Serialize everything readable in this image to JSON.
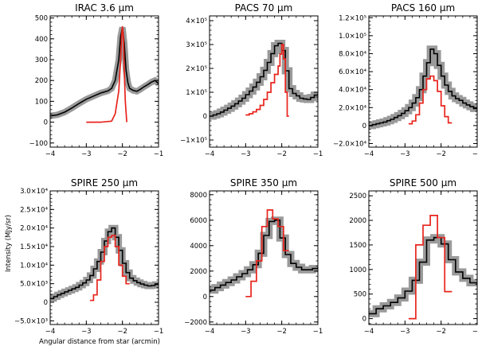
{
  "figure": {
    "ylabel": "Intensity (MJy/sr)",
    "xlabel": "Angular distance from star (arcmin)",
    "colors": {
      "observed": "#000000",
      "band": "#9a9a9a",
      "model": "#e8241c"
    }
  },
  "chart_data": [
    {
      "type": "line",
      "title": "IRAC 3.6 μm",
      "xlim": [
        -4,
        -1
      ],
      "ylim": [
        -120,
        510
      ],
      "xticks": [
        -4,
        -3,
        -2,
        -1
      ],
      "xtick_labels": [
        "−4",
        "−3",
        "−2",
        "−1"
      ],
      "yticks": [
        -100,
        0,
        100,
        200,
        300,
        400,
        500
      ],
      "ytick_labels": [
        "−100",
        "0",
        "100",
        "200",
        "300",
        "400",
        "500"
      ],
      "band_width": 8,
      "series": [
        {
          "name": "observed",
          "x": [
            -4.0,
            -3.8,
            -3.6,
            -3.4,
            -3.2,
            -3.0,
            -2.8,
            -2.6,
            -2.4,
            -2.3,
            -2.2,
            -2.1,
            -2.05,
            -2.0,
            -1.95,
            -1.9,
            -1.85,
            -1.8,
            -1.7,
            -1.6,
            -1.5,
            -1.4,
            -1.3,
            -1.2,
            -1.1,
            -1.0
          ],
          "y": [
            30,
            35,
            48,
            68,
            90,
            110,
            125,
            140,
            150,
            162,
            200,
            300,
            410,
            455,
            380,
            250,
            190,
            162,
            152,
            148,
            158,
            170,
            180,
            192,
            200,
            185
          ]
        },
        {
          "name": "model",
          "x": [
            -3.0,
            -2.6,
            -2.3,
            -2.2,
            -2.1,
            -2.05,
            -2.02,
            -2.0,
            -1.97,
            -1.95,
            -1.92,
            -1.88
          ],
          "y": [
            0,
            0,
            5,
            40,
            150,
            300,
            420,
            460,
            400,
            250,
            100,
            0
          ]
        }
      ]
    },
    {
      "type": "line",
      "title": "PACS 70 μm",
      "xlim": [
        -4,
        -1
      ],
      "ylim": [
        -130000,
        420000
      ],
      "xticks": [
        -4,
        -3,
        -2,
        -1
      ],
      "xtick_labels": [
        "−4",
        "−3",
        "−2",
        "−1"
      ],
      "yticks": [
        -100000,
        0,
        100000,
        200000,
        300000,
        400000
      ],
      "ytick_labels": [
        "−1×10⁵",
        "0",
        "1×10⁵",
        "2×10⁵",
        "3×10⁵",
        "4×10⁵"
      ],
      "band_width": 9,
      "series": [
        {
          "name": "observed",
          "step": true,
          "x": [
            -4.0,
            -3.9,
            -3.8,
            -3.7,
            -3.6,
            -3.5,
            -3.4,
            -3.3,
            -3.2,
            -3.1,
            -3.0,
            -2.9,
            -2.8,
            -2.7,
            -2.6,
            -2.5,
            -2.4,
            -2.3,
            -2.2,
            -2.1,
            -2.0,
            -1.9,
            -1.8,
            -1.7,
            -1.6,
            -1.5,
            -1.4,
            -1.3,
            -1.2,
            -1.1,
            -1.0
          ],
          "y": [
            0,
            5000,
            10000,
            17000,
            25000,
            33000,
            42000,
            52000,
            63000,
            75000,
            90000,
            105000,
            122000,
            142000,
            165000,
            192000,
            225000,
            262000,
            295000,
            305000,
            275000,
            190000,
            115000,
            95000,
            85000,
            75000,
            72000,
            70000,
            78000,
            88000,
            95000
          ]
        },
        {
          "name": "model",
          "step": true,
          "x": [
            -3.0,
            -2.9,
            -2.8,
            -2.7,
            -2.6,
            -2.5,
            -2.4,
            -2.3,
            -2.2,
            -2.1,
            -2.05,
            -2.0,
            -1.95,
            -1.9,
            -1.85
          ],
          "y": [
            5000,
            10000,
            18000,
            28000,
            45000,
            70000,
            100000,
            140000,
            175000,
            210000,
            260000,
            300000,
            240000,
            100000,
            0
          ]
        }
      ]
    },
    {
      "type": "line",
      "title": "PACS 160 μm",
      "xlim": [
        -4,
        -1
      ],
      "ylim": [
        -24000,
        122000
      ],
      "xticks": [
        -4,
        -3,
        -2,
        -1
      ],
      "xtick_labels": [
        "−4",
        "−3",
        "−2",
        "−1"
      ],
      "yticks": [
        -20000,
        0,
        20000,
        40000,
        60000,
        80000,
        100000,
        120000
      ],
      "ytick_labels": [
        "−2.0×10⁴",
        "0",
        "2.0×10⁴",
        "4.0×10⁴",
        "6.0×10⁴",
        "8.0×10⁴",
        "1.0×10⁵",
        "1.2×10⁵"
      ],
      "band_width": 9,
      "series": [
        {
          "name": "observed",
          "step": true,
          "x": [
            -4.0,
            -3.9,
            -3.8,
            -3.7,
            -3.6,
            -3.5,
            -3.4,
            -3.3,
            -3.2,
            -3.1,
            -3.0,
            -2.9,
            -2.8,
            -2.7,
            -2.6,
            -2.5,
            -2.4,
            -2.3,
            -2.2,
            -2.1,
            -2.0,
            -1.9,
            -1.8,
            -1.7,
            -1.6,
            -1.5,
            -1.4,
            -1.3,
            -1.2,
            -1.1,
            -1.0
          ],
          "y": [
            0,
            1000,
            2000,
            3000,
            4000,
            5500,
            7000,
            9000,
            11000,
            13500,
            16500,
            20000,
            25000,
            31000,
            40000,
            55000,
            70000,
            85000,
            80000,
            67000,
            55000,
            45000,
            38000,
            33000,
            30000,
            28000,
            25000,
            23000,
            21000,
            19000,
            18000
          ]
        },
        {
          "name": "model",
          "step": true,
          "x": [
            -2.9,
            -2.8,
            -2.7,
            -2.6,
            -2.5,
            -2.4,
            -2.3,
            -2.2,
            -2.1,
            -2.0,
            -1.9,
            -1.8
          ],
          "y": [
            2000,
            5000,
            12000,
            25000,
            40000,
            52000,
            55000,
            50000,
            38000,
            22000,
            10000,
            3000
          ]
        }
      ]
    },
    {
      "type": "line",
      "title": "SPIRE 250 μm",
      "xlim": [
        -4,
        -1
      ],
      "ylim": [
        -6000,
        30000
      ],
      "xticks": [
        -4,
        -3,
        -2,
        -1
      ],
      "xtick_labels": [
        "−4",
        "−3",
        "−2",
        "−1"
      ],
      "yticks": [
        -5000,
        0,
        5000,
        10000,
        15000,
        20000,
        25000,
        30000
      ],
      "ytick_labels": [
        "−5.0×10³",
        "0",
        "5.0×10³",
        "1.0×10⁴",
        "1.5×10⁴",
        "2.0×10⁴",
        "2.5×10⁴",
        "3.0×10⁴"
      ],
      "band_width": 8,
      "series": [
        {
          "name": "observed",
          "step": true,
          "x": [
            -4.0,
            -3.9,
            -3.8,
            -3.7,
            -3.6,
            -3.5,
            -3.4,
            -3.3,
            -3.2,
            -3.1,
            -3.0,
            -2.9,
            -2.8,
            -2.7,
            -2.6,
            -2.5,
            -2.4,
            -2.3,
            -2.2,
            -2.1,
            -2.0,
            -1.9,
            -1.8,
            -1.7,
            -1.6,
            -1.5,
            -1.4,
            -1.3,
            -1.2,
            -1.1,
            -1.0
          ],
          "y": [
            1000,
            1500,
            2000,
            2400,
            2800,
            3200,
            3600,
            4000,
            4600,
            5200,
            6000,
            7200,
            9000,
            11000,
            13500,
            16500,
            19000,
            20000,
            17500,
            14000,
            10500,
            8000,
            6500,
            5800,
            5300,
            4900,
            4600,
            4400,
            4500,
            4800,
            5200
          ]
        },
        {
          "name": "model",
          "step": true,
          "x": [
            -2.9,
            -2.8,
            -2.7,
            -2.6,
            -2.5,
            -2.4,
            -2.3,
            -2.2,
            -2.1,
            -2.0,
            -1.9
          ],
          "y": [
            500,
            2000,
            6000,
            11000,
            15000,
            17500,
            18000,
            15000,
            10000,
            7000,
            5000
          ]
        }
      ]
    },
    {
      "type": "line",
      "title": "SPIRE 350 μm",
      "xlim": [
        -4,
        -1
      ],
      "ylim": [
        -2200,
        8300
      ],
      "xticks": [
        -4,
        -3,
        -2,
        -1
      ],
      "xtick_labels": [
        "−4",
        "−3",
        "−2",
        "−1"
      ],
      "yticks": [
        -2000,
        0,
        2000,
        4000,
        6000,
        8000
      ],
      "ytick_labels": [
        "−2000",
        "0",
        "2000",
        "4000",
        "6000",
        "8000"
      ],
      "band_width": 9,
      "series": [
        {
          "name": "observed",
          "step": true,
          "x": [
            -4.0,
            -3.85,
            -3.7,
            -3.55,
            -3.4,
            -3.25,
            -3.1,
            -2.95,
            -2.8,
            -2.65,
            -2.5,
            -2.35,
            -2.2,
            -2.05,
            -1.9,
            -1.75,
            -1.6,
            -1.45,
            -1.3,
            -1.15,
            -1.0
          ],
          "y": [
            500,
            700,
            900,
            1100,
            1300,
            1550,
            1800,
            2100,
            2500,
            3400,
            4800,
            5900,
            6000,
            4600,
            3300,
            2600,
            2300,
            2100,
            2100,
            2200,
            2300
          ]
        },
        {
          "name": "model",
          "step": true,
          "x": [
            -3.0,
            -2.85,
            -2.7,
            -2.55,
            -2.4,
            -2.25,
            -2.1,
            -1.95
          ],
          "y": [
            0,
            1200,
            2800,
            5500,
            6800,
            6100,
            5500,
            3600
          ]
        }
      ]
    },
    {
      "type": "line",
      "title": "SPIRE 500 μm",
      "xlim": [
        -4,
        -1
      ],
      "ylim": [
        -120,
        2600
      ],
      "xticks": [
        -4,
        -3,
        -2,
        -1
      ],
      "xtick_labels": [
        "−4",
        "−3",
        "−2",
        "−1"
      ],
      "yticks": [
        0,
        500,
        1000,
        1500,
        2000,
        2500
      ],
      "ytick_labels": [
        "0",
        "500",
        "1000",
        "1500",
        "2000",
        "2500"
      ],
      "band_width": 9,
      "series": [
        {
          "name": "observed",
          "step": true,
          "x": [
            -4.0,
            -3.8,
            -3.6,
            -3.4,
            -3.2,
            -3.0,
            -2.8,
            -2.6,
            -2.4,
            -2.2,
            -2.0,
            -1.8,
            -1.6,
            -1.4,
            -1.2,
            -1.0
          ],
          "y": [
            100,
            200,
            260,
            330,
            420,
            560,
            780,
            1150,
            1600,
            1650,
            1520,
            1200,
            950,
            820,
            730,
            700
          ]
        },
        {
          "name": "model",
          "step": true,
          "x": [
            -2.9,
            -2.7,
            -2.5,
            -2.3,
            -2.1,
            -1.9
          ],
          "y": [
            0,
            1500,
            1900,
            2100,
            1650,
            550
          ]
        }
      ]
    }
  ]
}
